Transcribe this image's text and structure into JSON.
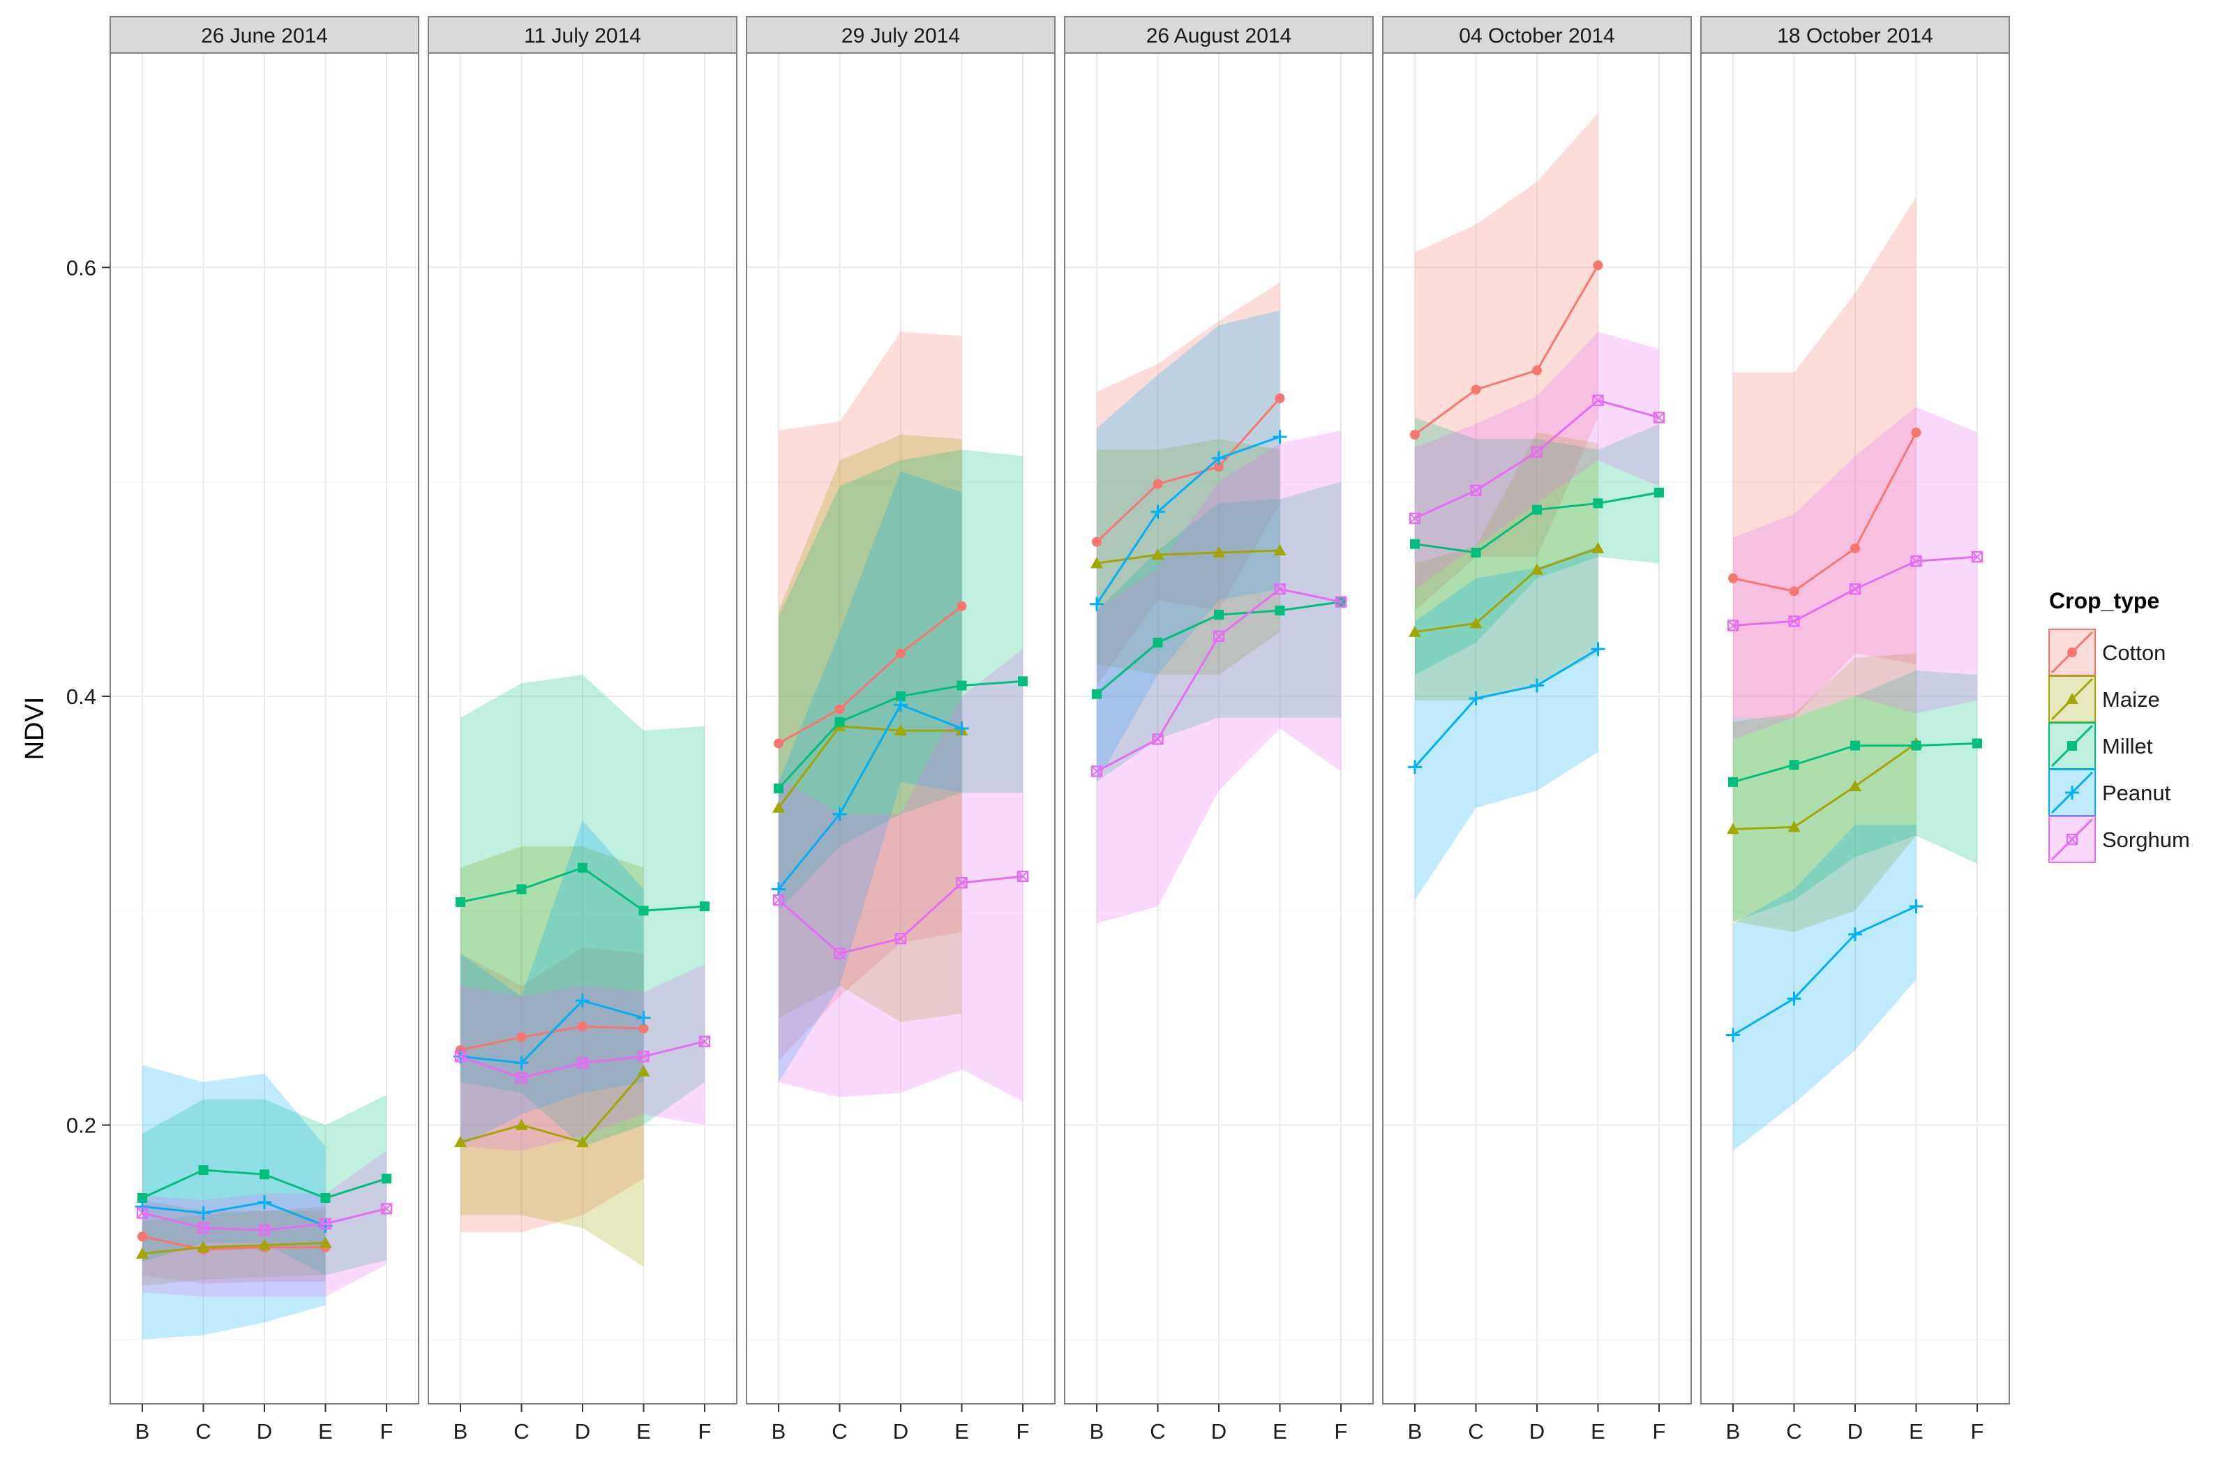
{
  "chart_data": {
    "type": "line",
    "ylabel": "NDVI",
    "xlabel": "",
    "ylim": [
      0.07,
      0.7
    ],
    "yticks": [
      0.2,
      0.4,
      0.6
    ],
    "ytick_labels": [
      "0.2",
      "0.4",
      "0.6"
    ],
    "categories": [
      "B",
      "C",
      "D",
      "E",
      "F"
    ],
    "grid": true,
    "legend": {
      "title": "Crop_type",
      "position": "right",
      "entries": [
        "Cotton",
        "Maize",
        "Millet",
        "Peanut",
        "Sorghum"
      ]
    },
    "series_styles": [
      {
        "name": "Cotton",
        "color": "#F8766D",
        "marker": "circle"
      },
      {
        "name": "Maize",
        "color": "#A3A500",
        "marker": "triangle"
      },
      {
        "name": "Millet",
        "color": "#00BF7D",
        "marker": "square"
      },
      {
        "name": "Peanut",
        "color": "#00B0F6",
        "marker": "plus"
      },
      {
        "name": "Sorghum",
        "color": "#E76BF3",
        "marker": "boxx"
      }
    ],
    "panels": [
      {
        "title": "26 June 2014",
        "series": [
          {
            "name": "Cotton",
            "values": [
              0.148,
              0.142,
              0.143,
              0.143,
              null
            ],
            "lower": [
              0.13,
              0.126,
              0.127,
              0.127,
              null
            ],
            "upper": [
              0.165,
              0.16,
              0.16,
              0.162,
              null
            ]
          },
          {
            "name": "Maize",
            "values": [
              0.14,
              0.143,
              0.144,
              0.145,
              null
            ],
            "lower": [
              0.125,
              0.128,
              0.129,
              0.13,
              null
            ],
            "upper": [
              0.155,
              0.158,
              0.16,
              0.16,
              null
            ]
          },
          {
            "name": "Millet",
            "values": [
              0.166,
              0.179,
              0.177,
              0.166,
              0.175
            ],
            "lower": [
              0.136,
              0.145,
              0.145,
              0.13,
              0.137
            ],
            "upper": [
              0.196,
              0.212,
              0.212,
              0.2,
              0.214
            ]
          },
          {
            "name": "Peanut",
            "values": [
              0.162,
              0.159,
              0.164,
              0.153,
              null
            ],
            "lower": [
              0.1,
              0.102,
              0.108,
              0.116,
              null
            ],
            "upper": [
              0.228,
              0.22,
              0.224,
              0.19,
              null
            ]
          },
          {
            "name": "Sorghum",
            "values": [
              0.159,
              0.152,
              0.151,
              0.154,
              0.161
            ],
            "lower": [
              0.122,
              0.12,
              0.12,
              0.12,
              0.135
            ],
            "upper": [
              0.167,
              0.165,
              0.168,
              0.168,
              0.188
            ]
          }
        ]
      },
      {
        "title": "11 July 2014",
        "series": [
          {
            "name": "Cotton",
            "values": [
              0.235,
              0.241,
              0.246,
              0.245,
              null
            ],
            "lower": [
              0.15,
              0.15,
              0.158,
              0.175,
              null
            ],
            "upper": [
              0.28,
              0.265,
              0.283,
              0.28,
              null
            ]
          },
          {
            "name": "Maize",
            "values": [
              0.192,
              0.2,
              0.192,
              0.225,
              null
            ],
            "lower": [
              0.158,
              0.158,
              0.152,
              0.134,
              null
            ],
            "upper": [
              0.32,
              0.33,
              0.33,
              0.32,
              null
            ]
          },
          {
            "name": "Millet",
            "values": [
              0.304,
              0.31,
              0.32,
              0.3,
              0.302
            ],
            "lower": [
              0.22,
              0.215,
              0.19,
              0.2,
              0.22
            ],
            "upper": [
              0.39,
              0.406,
              0.41,
              0.384,
              0.386
            ]
          },
          {
            "name": "Peanut",
            "values": [
              0.232,
              0.229,
              0.258,
              0.25,
              null
            ],
            "lower": [
              0.19,
              0.205,
              0.215,
              0.22,
              null
            ],
            "upper": [
              0.28,
              0.26,
              0.342,
              0.31,
              null
            ]
          },
          {
            "name": "Sorghum",
            "values": [
              0.232,
              0.222,
              0.229,
              0.232,
              0.239
            ],
            "lower": [
              0.19,
              0.188,
              0.195,
              0.205,
              0.2
            ],
            "upper": [
              0.265,
              0.26,
              0.265,
              0.262,
              0.275
            ]
          }
        ]
      },
      {
        "title": "29 July 2014",
        "series": [
          {
            "name": "Cotton",
            "values": [
              0.378,
              0.394,
              0.42,
              0.442,
              null
            ],
            "lower": [
              0.23,
              0.26,
              0.285,
              0.29,
              null
            ],
            "upper": [
              0.524,
              0.528,
              0.57,
              0.568,
              null
            ]
          },
          {
            "name": "Maize",
            "values": [
              0.348,
              0.386,
              0.384,
              0.384,
              null
            ],
            "lower": [
              0.25,
              0.265,
              0.248,
              0.252,
              null
            ],
            "upper": [
              0.44,
              0.51,
              0.522,
              0.52,
              null
            ]
          },
          {
            "name": "Millet",
            "values": [
              0.357,
              0.388,
              0.4,
              0.405,
              0.407
            ],
            "lower": [
              0.3,
              0.33,
              0.345,
              0.355,
              0.355
            ],
            "upper": [
              0.437,
              0.498,
              0.51,
              0.515,
              0.512
            ]
          },
          {
            "name": "Peanut",
            "values": [
              0.31,
              0.345,
              0.396,
              0.385,
              null
            ],
            "lower": [
              0.22,
              0.265,
              0.36,
              0.355,
              null
            ],
            "upper": [
              0.36,
              0.43,
              0.505,
              0.495,
              null
            ]
          },
          {
            "name": "Sorghum",
            "values": [
              0.305,
              0.28,
              0.287,
              0.313,
              0.316
            ],
            "lower": [
              0.22,
              0.213,
              0.215,
              0.226,
              0.211
            ],
            "upper": [
              0.362,
              0.345,
              0.345,
              0.4,
              0.422
            ]
          }
        ]
      },
      {
        "title": "26 August 2014",
        "series": [
          {
            "name": "Cotton",
            "values": [
              0.472,
              0.499,
              0.507,
              0.539,
              null
            ],
            "lower": [
              0.405,
              0.445,
              0.44,
              0.49,
              null
            ],
            "upper": [
              0.542,
              0.555,
              0.575,
              0.593,
              null
            ]
          },
          {
            "name": "Maize",
            "values": [
              0.462,
              0.466,
              0.467,
              0.468,
              null
            ],
            "lower": [
              0.415,
              0.41,
              0.41,
              0.43,
              null
            ],
            "upper": [
              0.515,
              0.515,
              0.52,
              0.515,
              null
            ]
          },
          {
            "name": "Millet",
            "values": [
              0.401,
              0.425,
              0.438,
              0.44,
              0.444
            ],
            "lower": [
              0.36,
              0.38,
              0.39,
              0.39,
              0.39
            ],
            "upper": [
              0.44,
              0.468,
              0.49,
              0.492,
              0.5
            ]
          },
          {
            "name": "Peanut",
            "values": [
              0.443,
              0.486,
              0.511,
              0.521,
              null
            ],
            "lower": [
              0.36,
              0.41,
              0.445,
              0.45,
              null
            ],
            "upper": [
              0.525,
              0.55,
              0.573,
              0.58,
              null
            ]
          },
          {
            "name": "Sorghum",
            "values": [
              0.365,
              0.38,
              0.428,
              0.45,
              0.444
            ],
            "lower": [
              0.294,
              0.302,
              0.356,
              0.385,
              0.365
            ],
            "upper": [
              0.44,
              0.46,
              0.5,
              0.518,
              0.524
            ]
          }
        ]
      },
      {
        "title": "04 October 2014",
        "series": [
          {
            "name": "Cotton",
            "values": [
              0.522,
              0.543,
              0.552,
              0.601,
              null
            ],
            "lower": [
              0.44,
              0.465,
              0.465,
              0.53,
              null
            ],
            "upper": [
              0.607,
              0.62,
              0.64,
              0.672,
              null
            ]
          },
          {
            "name": "Maize",
            "values": [
              0.43,
              0.434,
              0.459,
              0.469,
              null
            ],
            "lower": [
              0.398,
              0.398,
              0.405,
              0.42,
              null
            ],
            "upper": [
              0.462,
              0.47,
              0.523,
              0.518,
              null
            ]
          },
          {
            "name": "Millet",
            "values": [
              0.471,
              0.467,
              0.487,
              0.49,
              0.495
            ],
            "lower": [
              0.41,
              0.425,
              0.455,
              0.465,
              0.462
            ],
            "upper": [
              0.53,
              0.52,
              0.52,
              0.515,
              0.527
            ]
          },
          {
            "name": "Peanut",
            "values": [
              0.367,
              0.399,
              0.405,
              0.422,
              null
            ],
            "lower": [
              0.305,
              0.348,
              0.356,
              0.374,
              null
            ],
            "upper": [
              0.435,
              0.455,
              0.46,
              0.47,
              null
            ]
          },
          {
            "name": "Sorghum",
            "values": [
              0.483,
              0.496,
              0.514,
              0.538,
              0.53
            ],
            "lower": [
              0.45,
              0.47,
              0.49,
              0.51,
              0.498
            ],
            "upper": [
              0.516,
              0.527,
              0.54,
              0.57,
              0.562
            ]
          }
        ]
      },
      {
        "title": "18 October 2014",
        "series": [
          {
            "name": "Cotton",
            "values": [
              0.455,
              0.449,
              0.469,
              0.523,
              null
            ],
            "lower": [
              0.39,
              0.39,
              0.42,
              0.415,
              null
            ],
            "upper": [
              0.551,
              0.551,
              0.588,
              0.633,
              null
            ]
          },
          {
            "name": "Maize",
            "values": [
              0.338,
              0.339,
              0.358,
              0.378,
              null
            ],
            "lower": [
              0.295,
              0.29,
              0.3,
              0.335,
              null
            ],
            "upper": [
              0.388,
              0.392,
              0.418,
              0.42,
              null
            ]
          },
          {
            "name": "Millet",
            "values": [
              0.36,
              0.368,
              0.377,
              0.377,
              0.378
            ],
            "lower": [
              0.295,
              0.305,
              0.325,
              0.335,
              0.322
            ],
            "upper": [
              0.39,
              0.39,
              0.4,
              0.412,
              0.41
            ]
          },
          {
            "name": "Peanut",
            "values": [
              0.242,
              0.259,
              0.289,
              0.302,
              null
            ],
            "lower": [
              0.188,
              0.21,
              0.235,
              0.268,
              null
            ],
            "upper": [
              0.294,
              0.31,
              0.34,
              0.34,
              null
            ]
          },
          {
            "name": "Sorghum",
            "values": [
              0.433,
              0.435,
              0.45,
              0.463,
              0.465
            ],
            "lower": [
              0.38,
              0.39,
              0.4,
              0.392,
              0.398
            ],
            "upper": [
              0.474,
              0.485,
              0.512,
              0.535,
              0.523
            ]
          }
        ]
      }
    ]
  }
}
